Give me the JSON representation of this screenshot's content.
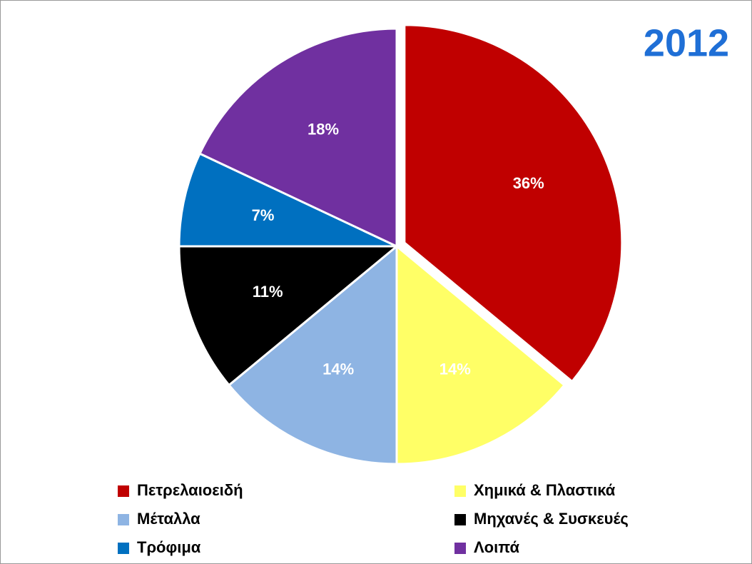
{
  "chart_data": {
    "type": "pie",
    "title": "2012",
    "categories": [
      "Πετρελαιοειδή",
      "Χημικά & Πλαστικά",
      "Μέταλλα",
      "Μηχανές & Συσκευές",
      "Τρόφιμα",
      "Λοιπά"
    ],
    "values": [
      36,
      14,
      14,
      11,
      7,
      18
    ],
    "value_labels": [
      "36%",
      "14%",
      "14%",
      "11%",
      "7%",
      "18%"
    ],
    "colors": [
      "#c00000",
      "#ffff66",
      "#8eb4e3",
      "#000000",
      "#0070c0",
      "#7030a0"
    ]
  }
}
